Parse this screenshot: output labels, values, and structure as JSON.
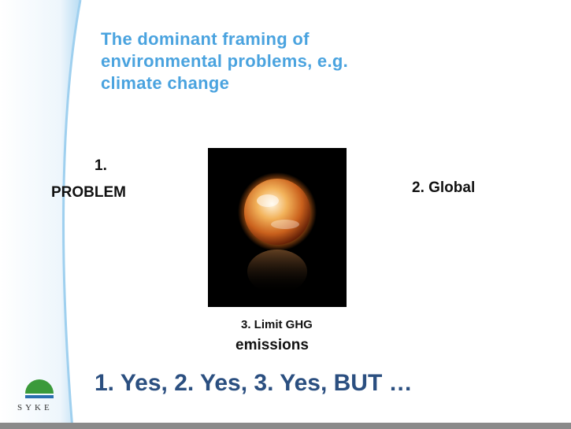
{
  "slide": {
    "title_lines": [
      "The dominant framing of",
      "environmental problems, e.g.",
      "climate change"
    ],
    "left_label": [
      "1.",
      "PROBLEM"
    ],
    "right_label": "2. Global",
    "caption": [
      "3. Limit  GHG",
      "emissions"
    ],
    "bottom_line": "1. Yes, 2. Yes, 3. Yes, BUT …",
    "logo": "SYKE"
  }
}
